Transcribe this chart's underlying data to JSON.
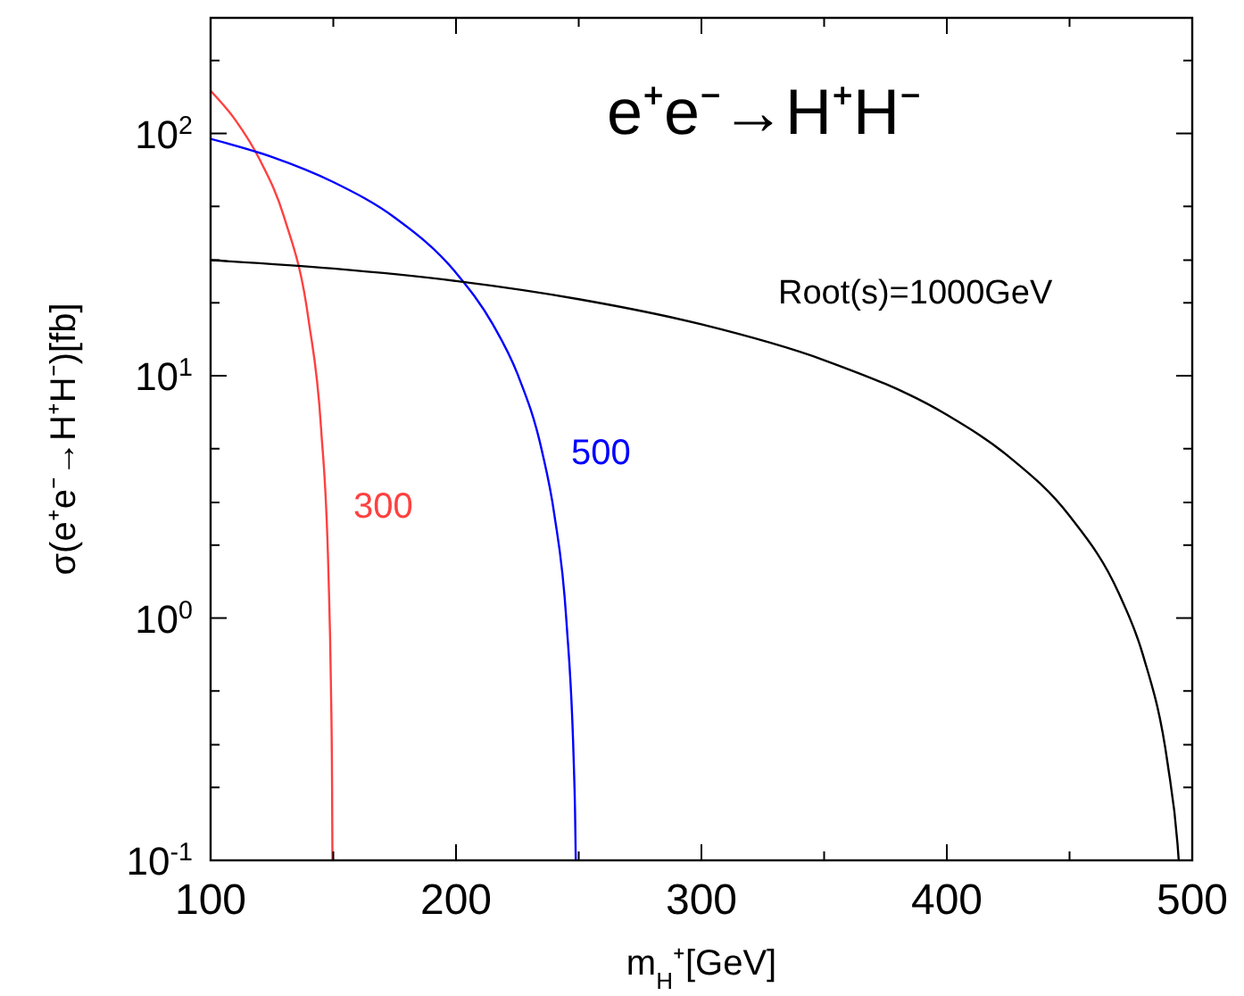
{
  "chart_data": {
    "type": "line",
    "title": "e⁺e⁻→H⁺H⁻",
    "xlabel": "m$_{H}$⁺[GeV]",
    "ylabel": "σ(e⁺e⁻→H⁺H⁻)[fb]",
    "log": "y",
    "grid": false,
    "marker": "none",
    "line_style": "solid",
    "xlim": [
      100,
      500
    ],
    "xticks": [
      100,
      {
        "value": 150,
        "label": null
      },
      200,
      {
        "value": 250,
        "label": null
      },
      300,
      {
        "value": 350,
        "label": null
      },
      400,
      {
        "value": 450,
        "label": null
      },
      500
    ],
    "ylim": [
      0.1,
      300
    ],
    "yticks": [
      {
        "value": 0.1,
        "label": "10$^{-1}$"
      },
      {
        "value": 0.2,
        "label": null
      },
      {
        "value": 0.3,
        "label": null
      },
      {
        "value": 0.5,
        "label": null
      },
      {
        "value": 1,
        "label": "10$^{0}$"
      },
      {
        "value": 2,
        "label": null
      },
      {
        "value": 3,
        "label": null
      },
      {
        "value": 5,
        "label": null
      },
      {
        "value": 10,
        "label": "10$^{1}$"
      },
      {
        "value": 20,
        "label": null
      },
      {
        "value": 30,
        "label": null
      },
      {
        "value": 50,
        "label": null
      },
      {
        "value": 100,
        "label": "10$^{2}$"
      },
      {
        "value": 200,
        "label": null
      }
    ],
    "series": [
      {
        "name": "300",
        "color": "#ff4040",
        "x": [
          100,
          110,
          120,
          130,
          140,
          145,
          148,
          149,
          149.5,
          149.65
        ],
        "values": [
          150,
          114,
          78,
          45,
          16.8,
          6.1,
          1.56,
          0.55,
          0.2,
          0.1
        ]
      },
      {
        "name": "500",
        "color": "#0000ff",
        "x": [
          100,
          125,
          150,
          175,
          200,
          215,
          225,
          235,
          240,
          245,
          248,
          248.5,
          248.8
        ],
        "values": [
          95,
          80,
          63,
          45,
          26.6,
          16.3,
          10.2,
          4.9,
          2.7,
          0.97,
          0.25,
          0.16,
          0.1
        ]
      },
      {
        "name": "Root(s)=1000GeV",
        "color": "#000000",
        "x": [
          100,
          150,
          200,
          250,
          300,
          350,
          400,
          425,
          450,
          470,
          480,
          490,
          494,
          494.5
        ],
        "values": [
          30,
          27.7,
          24.6,
          20.7,
          16.3,
          11.6,
          6.9,
          4.66,
          2.64,
          1.27,
          0.7,
          0.25,
          0.117,
          0.1
        ]
      }
    ]
  }
}
